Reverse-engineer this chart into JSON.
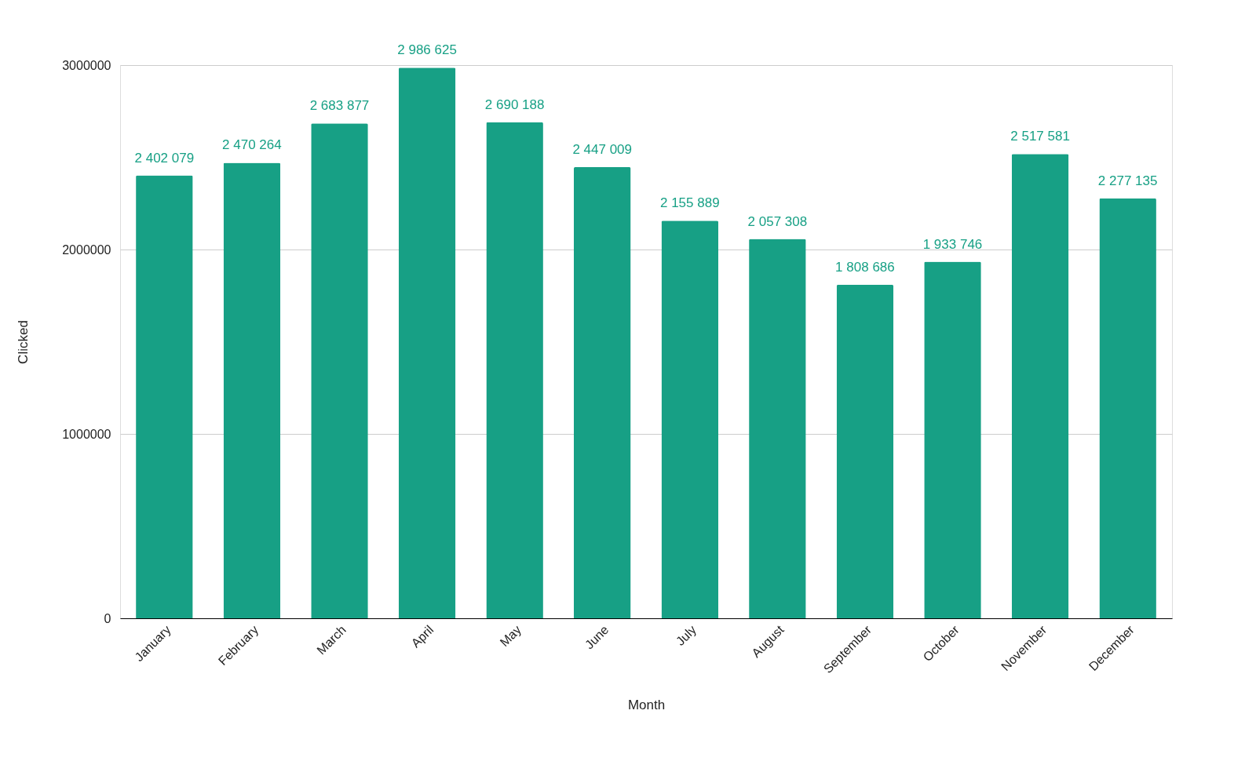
{
  "chart_data": {
    "type": "bar",
    "xlabel": "Month",
    "ylabel": "Clicked",
    "categories": [
      "January",
      "February",
      "March",
      "April",
      "May",
      "June",
      "July",
      "August",
      "September",
      "October",
      "November",
      "December"
    ],
    "values": [
      2402079,
      2470264,
      2683877,
      2986625,
      2690188,
      2447009,
      2155889,
      2057308,
      1808686,
      1933746,
      2517581,
      2277135
    ],
    "value_labels": [
      "2 402 079",
      "2 470 264",
      "2 683 877",
      "2 986 625",
      "2 690 188",
      "2 447 009",
      "2 155 889",
      "2 057 308",
      "1 808 686",
      "1 933 746",
      "2 517 581",
      "2 277 135"
    ],
    "color": "#17a085",
    "ylim": [
      0,
      3000000
    ],
    "yticks": [
      0,
      1000000,
      2000000,
      3000000
    ],
    "grid": "y"
  }
}
